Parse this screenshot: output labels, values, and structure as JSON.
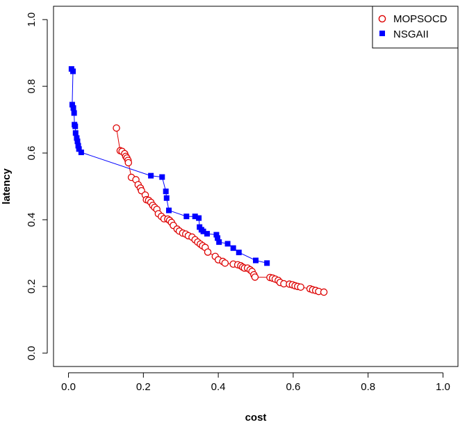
{
  "chart_data": {
    "type": "scatter",
    "title": "",
    "xlabel": "cost",
    "ylabel": "latency",
    "xlim": [
      -0.04,
      1.04
    ],
    "ylim": [
      -0.04,
      1.04
    ],
    "xticks": [
      "0.0",
      "0.2",
      "0.4",
      "0.6",
      "0.8",
      "1.0"
    ],
    "yticks": [
      "0.0",
      "0.2",
      "0.4",
      "0.6",
      "0.8",
      "1.0"
    ],
    "grid": false,
    "legend": "top-right",
    "series": [
      {
        "name": "MOPSOCD",
        "marker": "open-circle",
        "color": "#dd0000",
        "connected": true,
        "points": [
          [
            0.128,
            0.675
          ],
          [
            0.138,
            0.607
          ],
          [
            0.143,
            0.605
          ],
          [
            0.15,
            0.598
          ],
          [
            0.153,
            0.59
          ],
          [
            0.156,
            0.585
          ],
          [
            0.159,
            0.578
          ],
          [
            0.16,
            0.571
          ],
          [
            0.168,
            0.527
          ],
          [
            0.18,
            0.52
          ],
          [
            0.186,
            0.505
          ],
          [
            0.192,
            0.495
          ],
          [
            0.195,
            0.487
          ],
          [
            0.205,
            0.474
          ],
          [
            0.208,
            0.46
          ],
          [
            0.214,
            0.458
          ],
          [
            0.22,
            0.452
          ],
          [
            0.225,
            0.443
          ],
          [
            0.23,
            0.437
          ],
          [
            0.236,
            0.431
          ],
          [
            0.24,
            0.418
          ],
          [
            0.248,
            0.41
          ],
          [
            0.255,
            0.403
          ],
          [
            0.265,
            0.402
          ],
          [
            0.27,
            0.398
          ],
          [
            0.275,
            0.392
          ],
          [
            0.28,
            0.383
          ],
          [
            0.29,
            0.372
          ],
          [
            0.296,
            0.366
          ],
          [
            0.305,
            0.36
          ],
          [
            0.313,
            0.357
          ],
          [
            0.32,
            0.352
          ],
          [
            0.33,
            0.348
          ],
          [
            0.338,
            0.34
          ],
          [
            0.345,
            0.333
          ],
          [
            0.352,
            0.327
          ],
          [
            0.358,
            0.322
          ],
          [
            0.365,
            0.317
          ],
          [
            0.372,
            0.303
          ],
          [
            0.392,
            0.29
          ],
          [
            0.4,
            0.28
          ],
          [
            0.412,
            0.275
          ],
          [
            0.418,
            0.27
          ],
          [
            0.44,
            0.267
          ],
          [
            0.452,
            0.265
          ],
          [
            0.46,
            0.262
          ],
          [
            0.465,
            0.258
          ],
          [
            0.47,
            0.255
          ],
          [
            0.478,
            0.255
          ],
          [
            0.485,
            0.25
          ],
          [
            0.49,
            0.245
          ],
          [
            0.495,
            0.235
          ],
          [
            0.498,
            0.228
          ],
          [
            0.538,
            0.227
          ],
          [
            0.545,
            0.225
          ],
          [
            0.552,
            0.222
          ],
          [
            0.56,
            0.218
          ],
          [
            0.565,
            0.212
          ],
          [
            0.575,
            0.208
          ],
          [
            0.59,
            0.207
          ],
          [
            0.598,
            0.205
          ],
          [
            0.605,
            0.202
          ],
          [
            0.612,
            0.2
          ],
          [
            0.62,
            0.198
          ],
          [
            0.645,
            0.193
          ],
          [
            0.652,
            0.19
          ],
          [
            0.66,
            0.188
          ],
          [
            0.668,
            0.185
          ],
          [
            0.682,
            0.183
          ]
        ]
      },
      {
        "name": "NSGAII",
        "marker": "filled-square",
        "color": "#0000ff",
        "connected": true,
        "points": [
          [
            0.008,
            0.852
          ],
          [
            0.012,
            0.845
          ],
          [
            0.01,
            0.745
          ],
          [
            0.013,
            0.735
          ],
          [
            0.015,
            0.72
          ],
          [
            0.016,
            0.685
          ],
          [
            0.018,
            0.68
          ],
          [
            0.019,
            0.66
          ],
          [
            0.022,
            0.645
          ],
          [
            0.024,
            0.635
          ],
          [
            0.026,
            0.622
          ],
          [
            0.028,
            0.612
          ],
          [
            0.034,
            0.602
          ],
          [
            0.22,
            0.532
          ],
          [
            0.25,
            0.528
          ],
          [
            0.26,
            0.485
          ],
          [
            0.262,
            0.465
          ],
          [
            0.268,
            0.428
          ],
          [
            0.315,
            0.41
          ],
          [
            0.338,
            0.41
          ],
          [
            0.348,
            0.405
          ],
          [
            0.35,
            0.378
          ],
          [
            0.355,
            0.37
          ],
          [
            0.36,
            0.365
          ],
          [
            0.37,
            0.358
          ],
          [
            0.395,
            0.355
          ],
          [
            0.398,
            0.345
          ],
          [
            0.402,
            0.333
          ],
          [
            0.425,
            0.328
          ],
          [
            0.44,
            0.315
          ],
          [
            0.455,
            0.302
          ],
          [
            0.5,
            0.278
          ],
          [
            0.53,
            0.27
          ]
        ]
      }
    ]
  }
}
